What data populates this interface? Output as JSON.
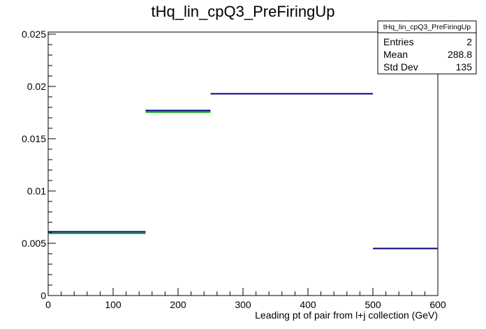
{
  "chart_data": {
    "type": "step",
    "title": "tHq_lin_cpQ3_PreFiringUp",
    "xlabel": "Leading pt of pair from l+j collection (GeV)",
    "ylabel": "",
    "xlim": [
      0,
      600
    ],
    "ylim": [
      0,
      0.0252
    ],
    "x_ticks": [
      0,
      100,
      200,
      300,
      400,
      500,
      600
    ],
    "y_ticks": [
      0,
      0.005,
      0.01,
      0.015,
      0.02,
      0.025
    ],
    "x_tick_labels": [
      "0",
      "100",
      "200",
      "300",
      "400",
      "500",
      "600"
    ],
    "y_tick_labels": [
      "0",
      "0.005",
      "0.01",
      "0.015",
      "0.02",
      "0.025"
    ],
    "grid": false,
    "series": [
      {
        "color": "#000080",
        "bins": [
          {
            "x0": 0,
            "x1": 150,
            "y": 0.0061
          },
          {
            "x0": 150,
            "x1": 250,
            "y": 0.0177
          },
          {
            "x0": 250,
            "x1": 500,
            "y": 0.0193
          },
          {
            "x0": 500,
            "x1": 600,
            "y": 0.0045
          }
        ]
      },
      {
        "color": "#00aa00",
        "bins": [
          {
            "x0": 0,
            "x1": 150,
            "y": 0.00595
          },
          {
            "x0": 150,
            "x1": 250,
            "y": 0.01755
          },
          {
            "x0": 250,
            "x1": 500,
            "y": 0.0193
          },
          {
            "x0": 500,
            "x1": 600,
            "y": 0.0045
          }
        ]
      }
    ],
    "stats_box": {
      "title": "tHq_lin_cpQ3_PreFiringUp",
      "rows": [
        {
          "label": "Entries",
          "value": "2"
        },
        {
          "label": "Mean",
          "value": "288.8"
        },
        {
          "label": "Std Dev",
          "value": "135"
        }
      ]
    }
  }
}
